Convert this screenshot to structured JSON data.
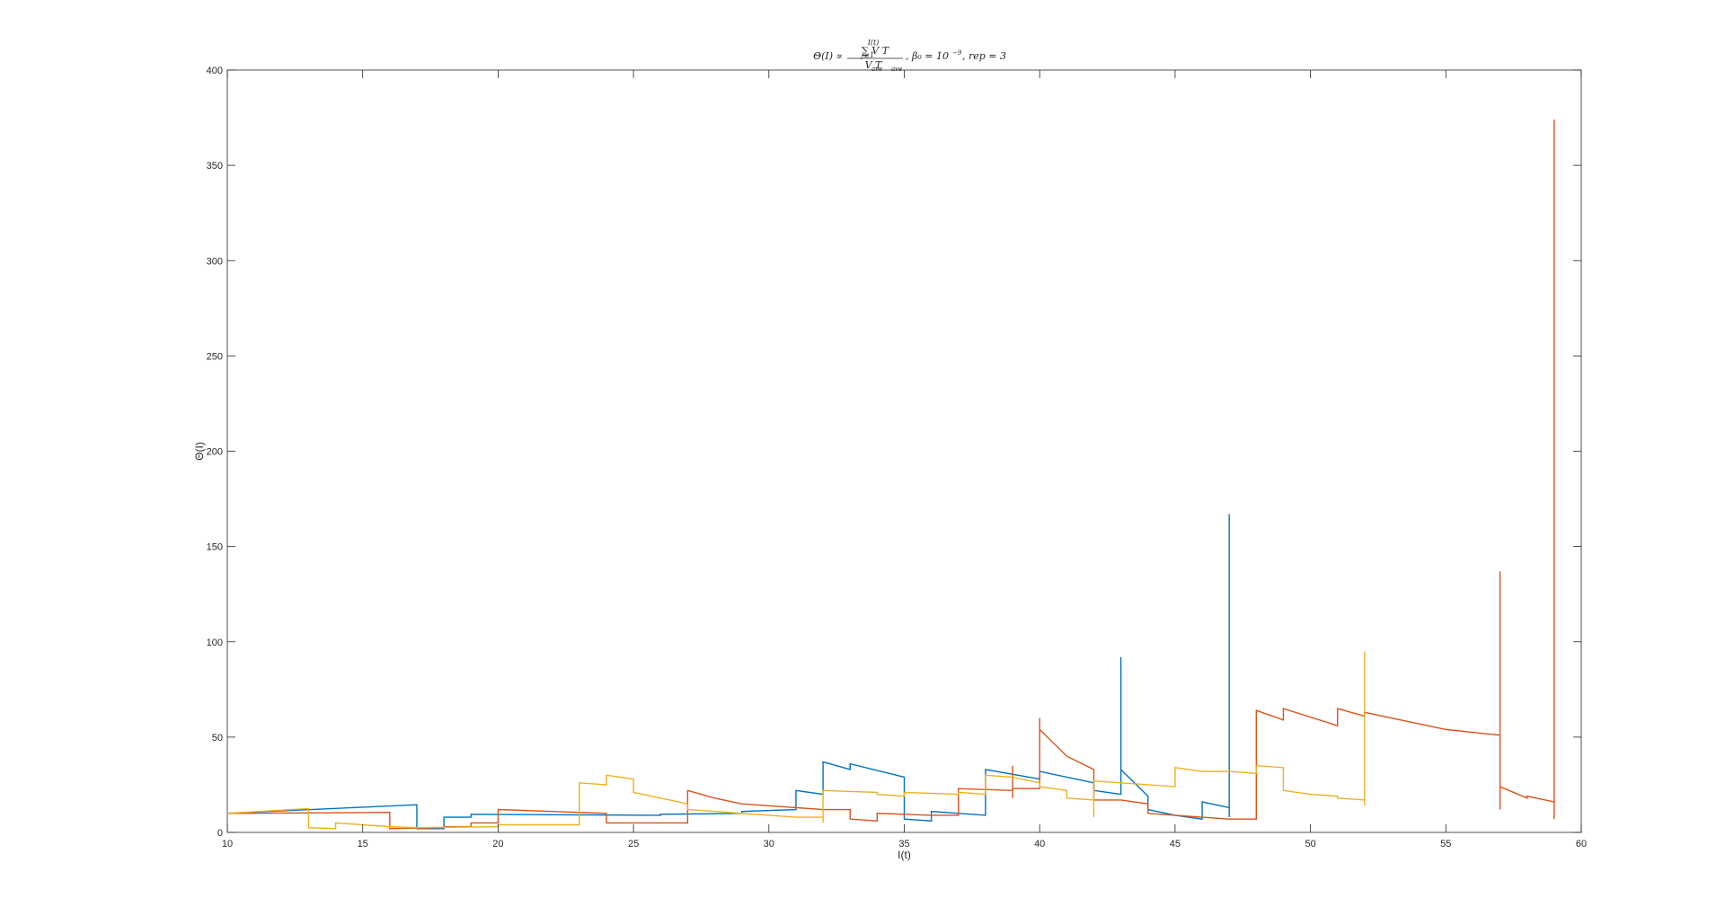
{
  "chart_data": {
    "type": "line",
    "title_parts": {
      "lhs": "Θ(I) ∝",
      "numerator": "∑ V T",
      "sum_upper": "I(t)",
      "sum_lower": "j≥1",
      "denominator": "V T",
      "den_sub1": "ave",
      "den_sub2": "ave",
      "tail": ", β₀ = 10",
      "tail_exp": "−9",
      "tail_end": ", rep = 3"
    },
    "xlabel": "I(t)",
    "ylabel": "Θ(I)",
    "xlim": [
      10,
      60
    ],
    "ylim": [
      0,
      400
    ],
    "xticks": [
      "10",
      "15",
      "20",
      "25",
      "30",
      "35",
      "40",
      "45",
      "50",
      "55",
      "60"
    ],
    "yticks": [
      "0",
      "50",
      "100",
      "150",
      "200",
      "250",
      "300",
      "350",
      "400"
    ],
    "grid": false,
    "legend": false,
    "series": [
      {
        "color": "#0072BD",
        "points": [
          [
            10,
            10
          ],
          [
            17,
            14.5
          ],
          [
            17,
            2
          ],
          [
            18,
            2
          ],
          [
            18,
            8
          ],
          [
            19,
            8
          ],
          [
            19,
            9.5
          ],
          [
            26,
            9
          ],
          [
            26,
            9.5
          ],
          [
            29,
            10
          ],
          [
            29,
            11
          ],
          [
            31,
            12
          ],
          [
            31,
            22
          ],
          [
            32,
            20
          ],
          [
            32,
            37
          ],
          [
            33,
            33
          ],
          [
            33,
            36
          ],
          [
            35,
            29
          ],
          [
            35,
            7
          ],
          [
            36,
            6
          ],
          [
            36,
            11
          ],
          [
            38,
            9
          ],
          [
            38,
            33
          ],
          [
            40,
            28
          ],
          [
            40,
            32
          ],
          [
            42,
            26
          ],
          [
            42,
            22
          ],
          [
            43,
            20
          ],
          [
            43,
            92
          ],
          [
            43,
            33
          ],
          [
            44,
            19
          ],
          [
            44,
            12
          ],
          [
            45,
            9
          ],
          [
            46,
            7
          ],
          [
            46,
            16
          ],
          [
            47,
            13
          ],
          [
            47,
            167
          ],
          [
            47,
            8
          ]
        ]
      },
      {
        "color": "#D95319",
        "points": [
          [
            10,
            10
          ],
          [
            16,
            10.5
          ],
          [
            16,
            2
          ],
          [
            18,
            2.5
          ],
          [
            18,
            3
          ],
          [
            19,
            3
          ],
          [
            19,
            5
          ],
          [
            20,
            5
          ],
          [
            20,
            12
          ],
          [
            24,
            10
          ],
          [
            24,
            5
          ],
          [
            27,
            5
          ],
          [
            27,
            22
          ],
          [
            28,
            18
          ],
          [
            29,
            15
          ],
          [
            31,
            13
          ],
          [
            32,
            12
          ],
          [
            33,
            12
          ],
          [
            33,
            7
          ],
          [
            34,
            6
          ],
          [
            34,
            10
          ],
          [
            36,
            9
          ],
          [
            37,
            9
          ],
          [
            37,
            23
          ],
          [
            39,
            22
          ],
          [
            39,
            35
          ],
          [
            39,
            18
          ],
          [
            39,
            23
          ],
          [
            40,
            23
          ],
          [
            40,
            60
          ],
          [
            40,
            54
          ],
          [
            41,
            40
          ],
          [
            42,
            33
          ],
          [
            42,
            17
          ],
          [
            43,
            17
          ],
          [
            44,
            15
          ],
          [
            44,
            10
          ],
          [
            45,
            9
          ],
          [
            47,
            7
          ],
          [
            48,
            7
          ],
          [
            48,
            64
          ],
          [
            49,
            59
          ],
          [
            49,
            65
          ],
          [
            51,
            56
          ],
          [
            51,
            65
          ],
          [
            52,
            61
          ],
          [
            52,
            63
          ],
          [
            54,
            57
          ],
          [
            55,
            54
          ],
          [
            57,
            51
          ],
          [
            57,
            137
          ],
          [
            57,
            12
          ],
          [
            57,
            24
          ],
          [
            58,
            18
          ],
          [
            58,
            19
          ],
          [
            59,
            16
          ],
          [
            59,
            374
          ],
          [
            59,
            7
          ]
        ]
      },
      {
        "color": "#EDB120",
        "points": [
          [
            10,
            10
          ],
          [
            13,
            12.5
          ],
          [
            13,
            2.5
          ],
          [
            14,
            2
          ],
          [
            14,
            5
          ],
          [
            16,
            3
          ],
          [
            17,
            2.5
          ],
          [
            20,
            3
          ],
          [
            20,
            4
          ],
          [
            23,
            4
          ],
          [
            23,
            26
          ],
          [
            24,
            25
          ],
          [
            24,
            30
          ],
          [
            25,
            28
          ],
          [
            25,
            21
          ],
          [
            27,
            15
          ],
          [
            27,
            12
          ],
          [
            29,
            10
          ],
          [
            31,
            8
          ],
          [
            32,
            8
          ],
          [
            32,
            5
          ],
          [
            32,
            22
          ],
          [
            34,
            21
          ],
          [
            34,
            20
          ],
          [
            35,
            19
          ],
          [
            35,
            21
          ],
          [
            37,
            20
          ],
          [
            37,
            21
          ],
          [
            38,
            20
          ],
          [
            38,
            30
          ],
          [
            39,
            29
          ],
          [
            40,
            26
          ],
          [
            40,
            24
          ],
          [
            41,
            22
          ],
          [
            41,
            18
          ],
          [
            42,
            17
          ],
          [
            42,
            8
          ],
          [
            42,
            27
          ],
          [
            45,
            24
          ],
          [
            45,
            34
          ],
          [
            46,
            32
          ],
          [
            47,
            32
          ],
          [
            48,
            31
          ],
          [
            48,
            35
          ],
          [
            49,
            34
          ],
          [
            49,
            22
          ],
          [
            50,
            20
          ],
          [
            51,
            19
          ],
          [
            51,
            18
          ],
          [
            52,
            17
          ],
          [
            52,
            95
          ],
          [
            52,
            14
          ]
        ]
      }
    ]
  }
}
